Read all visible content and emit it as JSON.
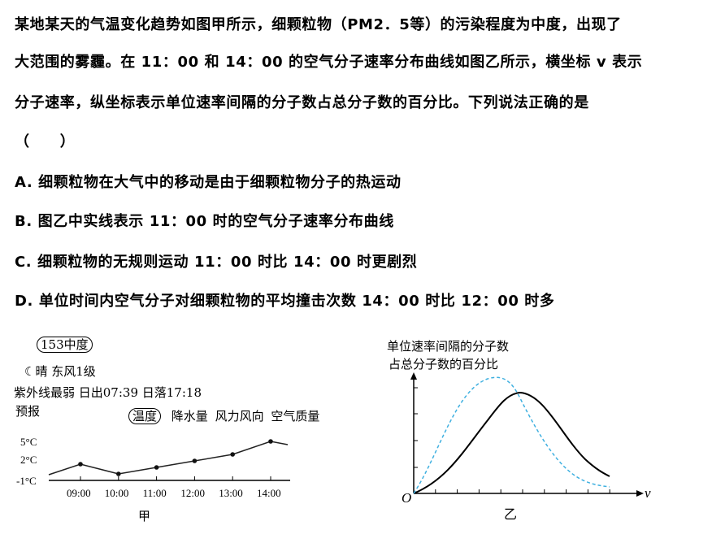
{
  "question": {
    "lines": [
      "某地某天的气温变化趋势如图甲所示，细颗粒物（PM2．5等）的污染程度为中度，出现了",
      "大范围的雾霾。在 11：00 和 14：00 的空气分子速率分布曲线如图乙所示，横坐标 v 表示",
      "分子速率，纵坐标表示单位速率间隔的分子数占总分子数的百分比。下列说法正确的是",
      "（　　）"
    ],
    "options": [
      "A. 细颗粒物在大气中的移动是由于细颗粒物分子的热运动",
      "B. 图乙中实线表示 11：00 时的空气分子速率分布曲线",
      "C. 细颗粒物的无规则运动 11：00 时比 14：00 时更剧烈",
      "D. 单位时间内空气分子对细颗粒物的平均撞击次数 14：00 时比 12：00 时多"
    ]
  },
  "figure_jia": {
    "aqi_badge": "153中度",
    "weather": "晴 东风1级",
    "uv_sun": "紫外线最弱 日出07:39 日落17:18",
    "forecast": "预报",
    "tabs": [
      "温度",
      "降水量",
      "风力风向",
      "空气质量"
    ],
    "y_ticks": [
      "5°C",
      "2°C",
      "-1°C"
    ],
    "x_ticks": [
      "09:00",
      "10:00",
      "11:00",
      "12:00",
      "13:00",
      "14:00"
    ],
    "temperatures": [
      1.5,
      0,
      1,
      2,
      3,
      5
    ],
    "caption": "甲",
    "icon": "moon-icon"
  },
  "figure_yi": {
    "ylabel_line1": "单位速率间隔的分子数",
    "ylabel_line2": "占总分子数的百分比",
    "origin": "O",
    "xlabel": "v",
    "caption": "乙",
    "solid_color": "#000000",
    "dashed_color": "#3fb0e0"
  }
}
